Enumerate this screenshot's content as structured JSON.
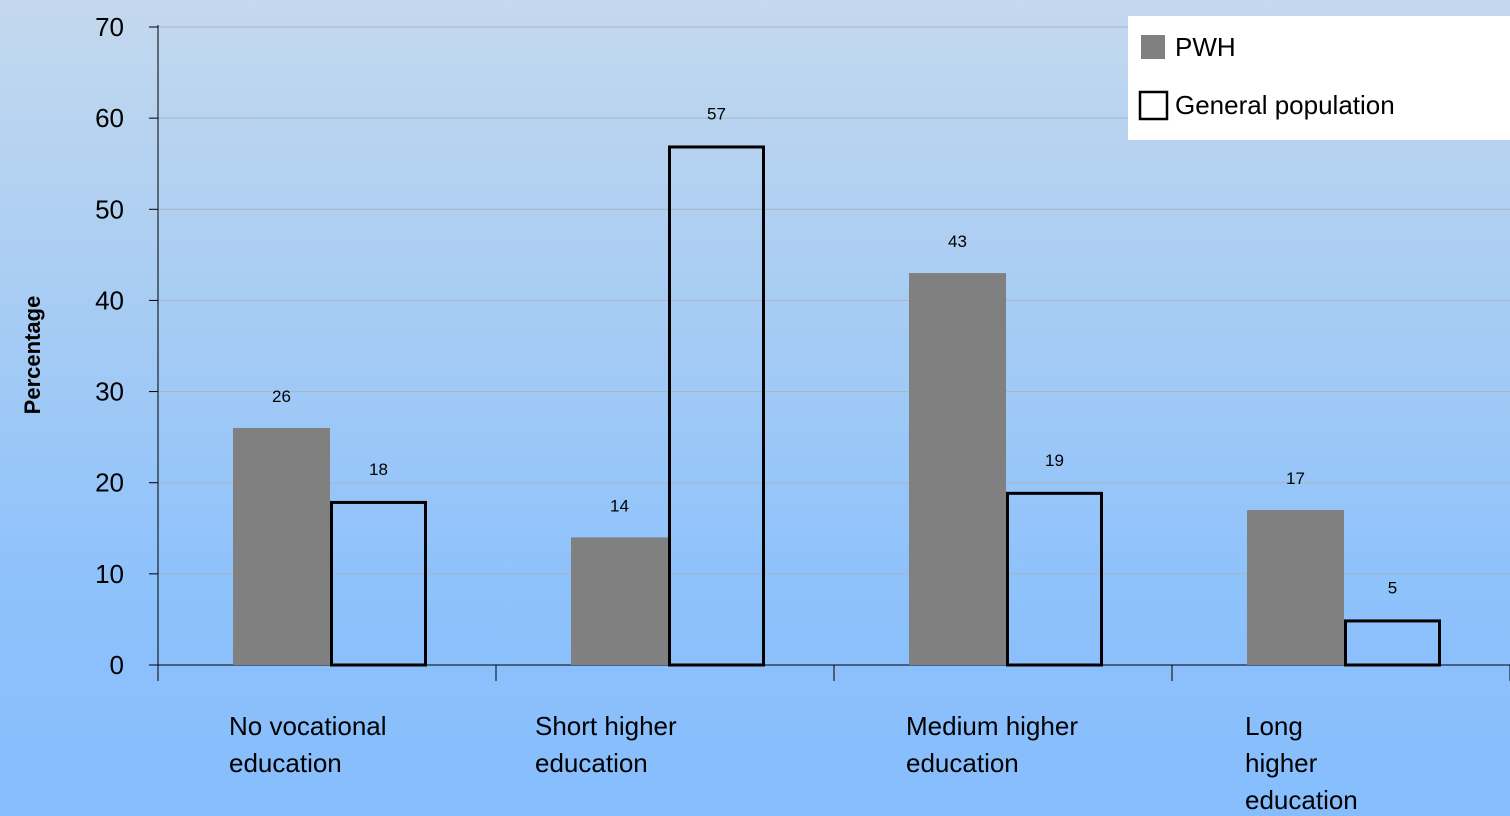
{
  "chart_data": {
    "type": "bar",
    "categories": [
      [
        "No vocational",
        "education"
      ],
      [
        "Short higher",
        "education"
      ],
      [
        "Medium higher",
        "education"
      ],
      [
        "Long",
        "higher",
        "education"
      ]
    ],
    "series": [
      {
        "name": "PWH",
        "values": [
          26,
          14,
          43,
          17
        ],
        "fill": "#808080",
        "stroke": "none"
      },
      {
        "name": "General population",
        "values": [
          18,
          57,
          19,
          5
        ],
        "fill": "none",
        "stroke": "#000000"
      }
    ],
    "ylabel": "Percentage",
    "ylim": [
      0,
      70
    ],
    "yticks": [
      0,
      10,
      20,
      30,
      40,
      50,
      60,
      70
    ],
    "grid": true,
    "legend_position": "top-right",
    "data_labels": [
      [
        "26",
        "14",
        "43",
        "17"
      ],
      [
        "18",
        "57",
        "19",
        "5"
      ]
    ]
  }
}
